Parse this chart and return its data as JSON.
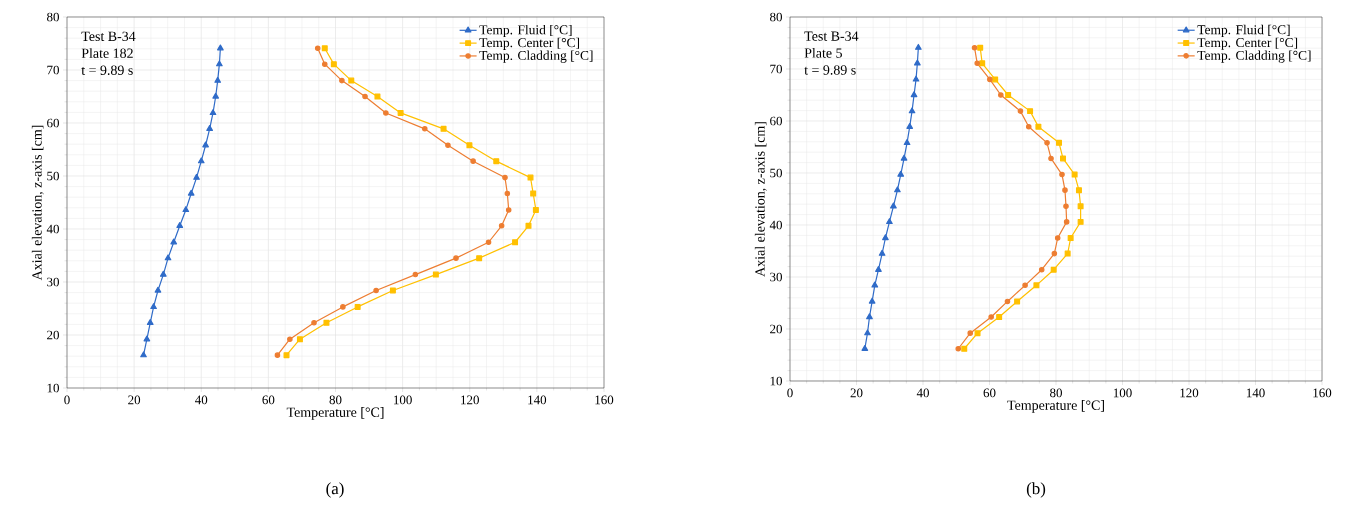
{
  "chart_data": [
    {
      "type": "line",
      "xlabel": "Temperature [°C]",
      "ylabel": "Axial elevation, z-axis [cm]",
      "xlim": [
        0,
        160
      ],
      "ylim": [
        10,
        80
      ],
      "xticks": [
        0,
        20,
        40,
        60,
        80,
        100,
        120,
        140,
        160
      ],
      "yticks": [
        10,
        20,
        30,
        40,
        50,
        60,
        70,
        80
      ],
      "grid": true,
      "legend": "top right",
      "line_style": "solid",
      "annotations": [
        "Test B-34",
        "Plate 182",
        "t = 9.89 s",
        "(a)"
      ],
      "series": [
        {
          "name": "Temp. Fluid [°C]",
          "color": "#2f6bc8",
          "marker": "triangle",
          "x": [
            22.8,
            23.8,
            24.8,
            25.8,
            27.1,
            28.7,
            30.1,
            31.8,
            33.6,
            35.4,
            37.0,
            38.6,
            40.0,
            41.3,
            42.5,
            43.5,
            44.3,
            44.9,
            45.4,
            45.7
          ],
          "values": [
            16.2,
            19.2,
            22.3,
            25.3,
            28.4,
            31.4,
            34.5,
            37.5,
            40.6,
            43.6,
            46.7,
            49.7,
            52.8,
            55.8,
            58.9,
            61.9,
            65.0,
            68.0,
            71.1,
            74.1
          ]
        },
        {
          "name": "Temp. Center [°C]",
          "color": "#ffc000",
          "marker": "square",
          "x": [
            65.4,
            69.4,
            77.3,
            86.6,
            97.1,
            109.9,
            122.8,
            133.5,
            137.5,
            139.7,
            138.9,
            138.1,
            127.9,
            119.9,
            112.2,
            99.4,
            92.5,
            84.7,
            79.5,
            76.8
          ],
          "values": [
            16.2,
            19.2,
            22.3,
            25.3,
            28.4,
            31.4,
            34.5,
            37.5,
            40.6,
            43.6,
            46.7,
            49.7,
            52.8,
            55.8,
            58.9,
            61.9,
            65.0,
            68.0,
            71.1,
            74.1
          ]
        },
        {
          "name": "Temp. Cladding [°C]",
          "color": "#ed7d31",
          "marker": "circle",
          "x": [
            62.7,
            66.4,
            73.6,
            82.2,
            92.1,
            103.8,
            115.9,
            125.6,
            129.5,
            131.6,
            131.2,
            130.5,
            121.0,
            113.5,
            106.6,
            95.0,
            88.8,
            81.9,
            76.8,
            74.7
          ],
          "values": [
            16.2,
            19.2,
            22.3,
            25.3,
            28.4,
            31.4,
            34.5,
            37.5,
            40.6,
            43.6,
            46.7,
            49.7,
            52.8,
            55.8,
            58.9,
            61.9,
            65.0,
            68.0,
            71.1,
            74.1
          ]
        }
      ]
    },
    {
      "type": "line",
      "xlabel": "Temperature [°C]",
      "ylabel": "Axial elevation, z-axis [cm]",
      "xlim": [
        0,
        160
      ],
      "ylim": [
        10,
        80
      ],
      "xticks": [
        0,
        20,
        40,
        60,
        80,
        100,
        120,
        140,
        160
      ],
      "yticks": [
        10,
        20,
        30,
        40,
        50,
        60,
        70,
        80
      ],
      "grid": true,
      "legend": "top right",
      "line_style": "solid",
      "annotations": [
        "Test B-34",
        "Plate 5",
        "t = 9.89 s",
        "(b)"
      ],
      "series": [
        {
          "name": "Temp. Fluid [°C]",
          "color": "#2f6bc8",
          "marker": "triangle",
          "x": [
            22.5,
            23.3,
            23.9,
            24.7,
            25.5,
            26.6,
            27.7,
            28.7,
            29.9,
            31.1,
            32.3,
            33.3,
            34.3,
            35.2,
            36.0,
            36.7,
            37.3,
            37.9,
            38.3,
            38.6
          ],
          "values": [
            16.2,
            19.2,
            22.3,
            25.3,
            28.4,
            31.4,
            34.5,
            37.5,
            40.6,
            43.6,
            46.7,
            49.7,
            52.8,
            55.8,
            58.9,
            61.9,
            65.0,
            68.0,
            71.1,
            74.1
          ]
        },
        {
          "name": "Temp. Center [°C]",
          "color": "#ffc000",
          "marker": "square",
          "x": [
            52.4,
            56.4,
            62.9,
            68.3,
            74.1,
            79.3,
            83.5,
            84.4,
            87.4,
            87.4,
            86.9,
            85.6,
            82.1,
            80.9,
            74.7,
            72.2,
            65.6,
            61.7,
            57.8,
            57.2
          ],
          "values": [
            16.2,
            19.2,
            22.3,
            25.3,
            28.4,
            31.4,
            34.5,
            37.5,
            40.6,
            43.6,
            46.7,
            49.7,
            52.8,
            55.8,
            58.9,
            61.9,
            65.0,
            68.0,
            71.1,
            74.1
          ]
        },
        {
          "name": "Temp. Cladding [°C]",
          "color": "#ed7d31",
          "marker": "circle",
          "x": [
            50.6,
            54.2,
            60.5,
            65.4,
            70.7,
            75.7,
            79.5,
            80.5,
            83.2,
            83.0,
            82.7,
            81.8,
            78.5,
            77.3,
            71.8,
            69.3,
            63.4,
            60.1,
            56.3,
            55.5
          ],
          "values": [
            16.2,
            19.2,
            22.3,
            25.3,
            28.4,
            31.4,
            34.5,
            37.5,
            40.6,
            43.6,
            46.7,
            49.7,
            52.8,
            55.8,
            58.9,
            61.9,
            65.0,
            68.0,
            71.1,
            74.1
          ]
        }
      ]
    }
  ]
}
